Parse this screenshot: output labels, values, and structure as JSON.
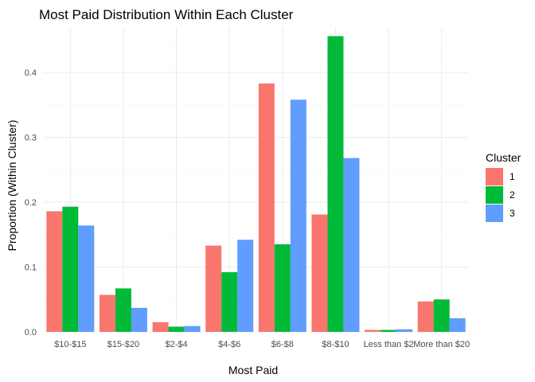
{
  "chart_data": {
    "type": "bar",
    "title": "Most Paid Distribution Within Each Cluster",
    "xlabel": "Most Paid",
    "ylabel": "Proportion (Within Cluster)",
    "categories": [
      "$10-$15",
      "$15-$20",
      "$2-$4",
      "$4-$6",
      "$6-$8",
      "$8-$10",
      "Less than $2",
      "More than $20"
    ],
    "series": [
      {
        "name": "1",
        "color": "#F8766D",
        "values": [
          0.186,
          0.057,
          0.015,
          0.133,
          0.383,
          0.181,
          0.003,
          0.047
        ]
      },
      {
        "name": "2",
        "color": "#00BA38",
        "values": [
          0.193,
          0.067,
          0.008,
          0.092,
          0.135,
          0.456,
          0.003,
          0.05
        ]
      },
      {
        "name": "3",
        "color": "#619CFF",
        "values": [
          0.164,
          0.037,
          0.009,
          0.142,
          0.358,
          0.268,
          0.004,
          0.021
        ]
      }
    ],
    "ylim": [
      0,
      0.47
    ],
    "yticks": [
      0.0,
      0.1,
      0.2,
      0.3,
      0.4
    ],
    "ytick_labels": [
      "0.0",
      "0.1",
      "0.2",
      "0.3",
      "0.4"
    ],
    "grid": true,
    "legend": {
      "title": "Cluster",
      "placement": "right"
    }
  }
}
